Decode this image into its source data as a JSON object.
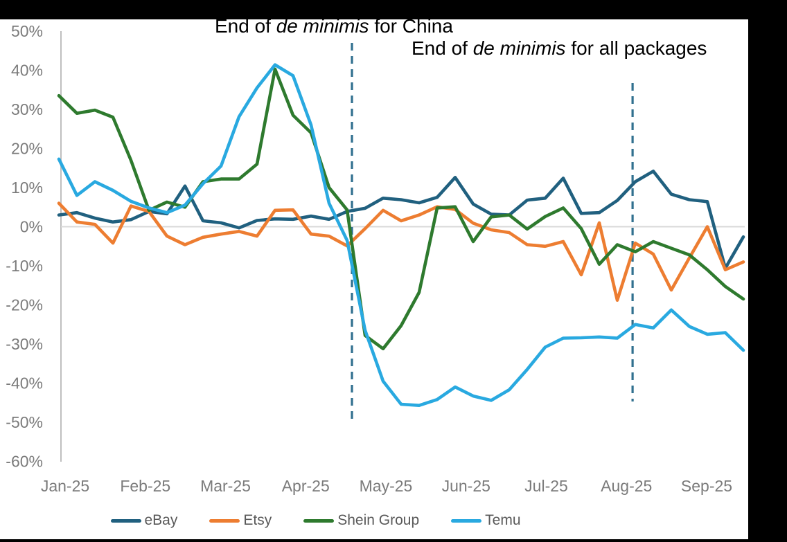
{
  "annotations": [
    {
      "prefix": "End of ",
      "italic": "de minimis",
      "suffix": " for China"
    },
    {
      "prefix": "End of ",
      "italic": "de minimis",
      "suffix": " for all packages"
    }
  ],
  "chart_data": {
    "type": "line",
    "title": "",
    "xlabel": "",
    "ylabel": "",
    "x_unit": "week",
    "ylim": [
      -60,
      50
    ],
    "grid": "zero-line-only",
    "legend_position": "bottom",
    "axis_color": "#bfbfbf",
    "zero_line_color": "#d9d9d9",
    "tick_color": "#7b7b7b",
    "event_line_color": "#31708f",
    "x_labels": [
      "Jan-25",
      "Feb-25",
      "Mar-25",
      "Apr-25",
      "May-25",
      "Jun-25",
      "Jul-25",
      "Aug-25",
      "Sep-25"
    ],
    "y_ticks": [
      "50%",
      "40%",
      "30%",
      "20%",
      "10%",
      "0%",
      "-10%",
      "-20%",
      "-30%",
      "-40%",
      "-50%",
      "-60%"
    ],
    "event_lines": [
      {
        "week": 16.27,
        "label": "End of de minimis for China"
      },
      {
        "week": 31.85,
        "label": "End of de minimis for all packages"
      }
    ],
    "series": [
      {
        "name": "eBay",
        "color": "#20607f",
        "values": [
          3.0,
          3.6,
          2.2,
          1.2,
          1.8,
          3.9,
          3.3,
          10.4,
          1.5,
          1.0,
          -0.3,
          1.6,
          2.0,
          1.9,
          2.7,
          1.9,
          3.9,
          4.7,
          7.3,
          6.9,
          6.1,
          7.5,
          12.6,
          5.8,
          3.2,
          3.0,
          6.8,
          7.3,
          12.4,
          3.4,
          3.6,
          6.7,
          11.5,
          14.2,
          8.3,
          6.9,
          6.4,
          -10.6,
          -2.6
        ]
      },
      {
        "name": "Etsy",
        "color": "#ed7d31",
        "values": [
          6.0,
          1.2,
          0.6,
          -4.2,
          5.3,
          3.9,
          -2.4,
          -4.6,
          -2.7,
          -1.9,
          -1.2,
          -2.4,
          4.2,
          4.3,
          -1.9,
          -2.4,
          -4.9,
          -0.5,
          4.2,
          1.5,
          3.0,
          5.1,
          4.4,
          0.9,
          -0.8,
          -1.5,
          -4.6,
          -5.0,
          -3.8,
          -12.3,
          1.0,
          -18.8,
          -4.2,
          -7.0,
          -16.2,
          -8.0,
          0.0,
          -11.0,
          -9.0
        ]
      },
      {
        "name": "Shein Group",
        "color": "#2e7a2e",
        "values": [
          33.5,
          29.0,
          29.8,
          28.0,
          17.0,
          4.2,
          6.3,
          5.0,
          11.5,
          12.2,
          12.2,
          16.0,
          40.3,
          28.5,
          24.0,
          10.0,
          4.3,
          -27.8,
          -31.2,
          -25.3,
          -16.8,
          4.8,
          5.1,
          -3.8,
          2.5,
          3.0,
          -0.6,
          2.6,
          4.8,
          -0.5,
          -9.6,
          -4.6,
          -6.4,
          -3.8,
          -5.5,
          -7.2,
          -11.0,
          -15.3,
          -18.5
        ]
      },
      {
        "name": "Temu",
        "color": "#29a9e0",
        "values": [
          17.3,
          8.0,
          11.5,
          9.3,
          6.5,
          4.8,
          3.6,
          5.5,
          11.0,
          15.5,
          28.1,
          35.5,
          41.4,
          38.6,
          26.0,
          6.0,
          -3.5,
          -26.5,
          -39.5,
          -45.4,
          -45.7,
          -44.2,
          -41.0,
          -43.3,
          -44.4,
          -41.7,
          -36.5,
          -30.8,
          -28.5,
          -28.4,
          -28.2,
          -28.5,
          -25.0,
          -25.9,
          -21.3,
          -25.5,
          -27.5,
          -27.1,
          -31.6
        ]
      }
    ]
  }
}
